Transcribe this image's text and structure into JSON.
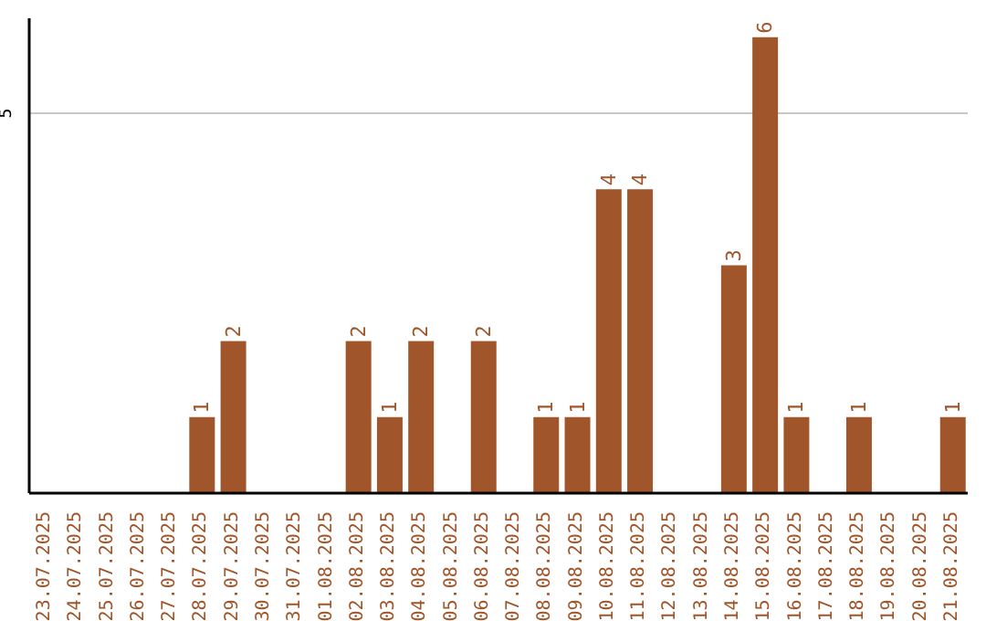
{
  "chart_data": {
    "type": "bar",
    "categories": [
      "23.07.2025",
      "24.07.2025",
      "25.07.2025",
      "26.07.2025",
      "27.07.2025",
      "28.07.2025",
      "29.07.2025",
      "30.07.2025",
      "31.07.2025",
      "01.08.2025",
      "02.08.2025",
      "03.08.2025",
      "04.08.2025",
      "05.08.2025",
      "06.08.2025",
      "07.08.2025",
      "08.08.2025",
      "09.08.2025",
      "10.08.2025",
      "11.08.2025",
      "12.08.2025",
      "13.08.2025",
      "14.08.2025",
      "15.08.2025",
      "16.08.2025",
      "17.08.2025",
      "18.08.2025",
      "19.08.2025",
      "20.08.2025",
      "21.08.2025"
    ],
    "values": [
      0,
      0,
      0,
      0,
      0,
      1,
      2,
      0,
      0,
      0,
      2,
      1,
      2,
      0,
      2,
      0,
      1,
      1,
      4,
      4,
      0,
      0,
      3,
      6,
      1,
      0,
      1,
      0,
      0,
      1
    ],
    "value_labels": [
      null,
      null,
      null,
      null,
      null,
      "1",
      "2",
      null,
      null,
      null,
      "2",
      "1",
      "2",
      null,
      "2",
      null,
      "1",
      "1",
      "4",
      "4",
      null,
      null,
      "3",
      "6",
      "1",
      null,
      "1",
      null,
      null,
      "1"
    ],
    "color": "#a0562a",
    "ylim": [
      0,
      6.25
    ],
    "yticks": [
      5
    ],
    "grid": "y"
  }
}
